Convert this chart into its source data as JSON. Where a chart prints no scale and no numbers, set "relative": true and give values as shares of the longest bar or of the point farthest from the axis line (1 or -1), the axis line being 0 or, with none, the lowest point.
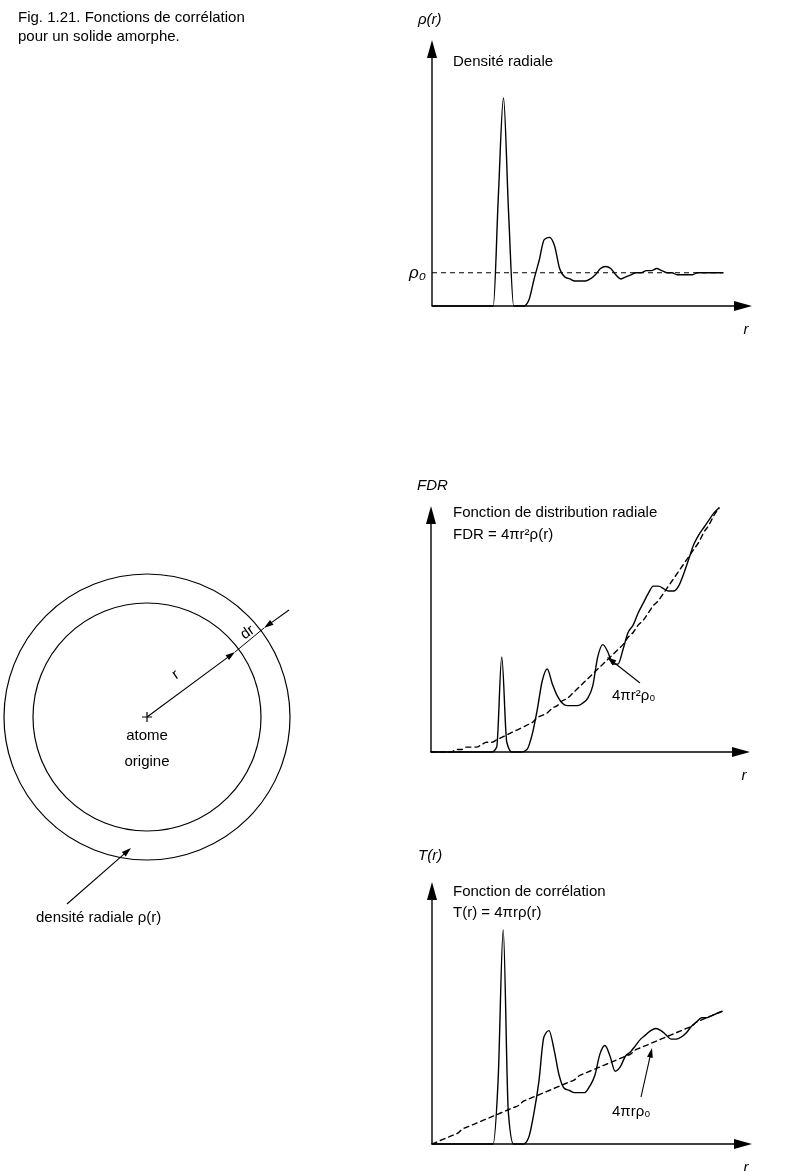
{
  "chart_data": [
    {
      "type": "other",
      "title": "Fig. 1.21. Fonctions de corrélation pour un solide amorphe.",
      "annotations": [
        "dr",
        "r",
        "atome origine",
        "densité radiale ρ(r)"
      ]
    },
    {
      "type": "line",
      "title": "Densité radiale",
      "ylabel": "ρ(r)",
      "xlabel": "r",
      "relative": true,
      "categories": [
        null,
        null,
        null,
        null,
        null,
        null,
        null,
        null,
        null,
        null,
        null,
        null,
        null,
        null,
        null,
        null,
        null,
        null,
        null,
        null,
        null,
        null,
        null,
        null,
        null,
        null,
        null,
        null,
        null,
        null,
        null,
        null,
        null,
        null,
        null,
        null,
        null,
        null,
        null,
        null,
        null,
        null,
        null,
        null,
        null,
        null,
        null,
        null,
        null,
        null,
        null,
        null,
        null,
        null,
        null,
        null,
        null,
        null
      ],
      "series": [
        {
          "color": "#000000",
          "line_style": "solid",
          "values": [
            0,
            0,
            0,
            0,
            0,
            0,
            0,
            0,
            0,
            0,
            0,
            0,
            0,
            0.53,
            1,
            0.45,
            0,
            0,
            0,
            0.03,
            0.13,
            0.22,
            0.32,
            0.33,
            0.29,
            0.18,
            0.14,
            0.13,
            0.12,
            0.12,
            0.12,
            0.13,
            0.15,
            0.18,
            0.19,
            0.18,
            0.15,
            0.13,
            0.14,
            0.15,
            0.16,
            0.16,
            0.17,
            0.17,
            0.18,
            0.17,
            0.16,
            0.16,
            0.15,
            0.15,
            0.15,
            0.15,
            0.16,
            0.16,
            0.16,
            0.16,
            0.16,
            0.16
          ]
        }
      ],
      "ref_lines": [
        {
          "axis": "y",
          "value": 0.16,
          "label": "ρ₀",
          "line_style": "dashed",
          "color": "#000000"
        }
      ]
    },
    {
      "type": "line",
      "title": "Fonction de distribution radiale",
      "subtitle": "FDR = 4πr²ρ(r)",
      "ylabel": "FDR",
      "xlabel": "r",
      "relative": true,
      "categories": [
        null,
        null,
        null,
        null,
        null,
        null,
        null,
        null,
        null,
        null,
        null,
        null,
        null,
        null,
        null,
        null,
        null,
        null,
        null,
        null,
        null,
        null,
        null,
        null,
        null,
        null,
        null,
        null,
        null,
        null,
        null,
        null,
        null,
        null,
        null,
        null,
        null,
        null,
        null,
        null,
        null,
        null,
        null,
        null,
        null,
        null,
        null,
        null,
        null,
        null,
        null,
        null,
        null,
        null,
        null,
        null,
        null,
        null
      ],
      "series": [
        {
          "color": "#000000",
          "line_style": "solid",
          "values": [
            0,
            0,
            0,
            0,
            0,
            0,
            0,
            0,
            0,
            0,
            0,
            0,
            0,
            0.02,
            0.39,
            0.04,
            0,
            0,
            0,
            0.01,
            0.07,
            0.17,
            0.29,
            0.34,
            0.28,
            0.23,
            0.2,
            0.19,
            0.19,
            0.19,
            0.2,
            0.22,
            0.27,
            0.39,
            0.44,
            0.41,
            0.36,
            0.36,
            0.42,
            0.49,
            0.52,
            0.57,
            0.61,
            0.65,
            0.68,
            0.68,
            0.67,
            0.66,
            0.66,
            0.68,
            0.73,
            0.79,
            0.85,
            0.89,
            0.92,
            0.95,
            0.98,
            1
          ]
        },
        {
          "color": "#000000",
          "line_style": "dashed",
          "values": [
            0,
            0,
            0,
            0,
            0,
            0.01,
            0.01,
            0.02,
            0.02,
            0.02,
            0.03,
            0.04,
            0.04,
            0.05,
            0.06,
            0.07,
            0.08,
            0.09,
            0.1,
            0.11,
            0.12,
            0.14,
            0.15,
            0.16,
            0.18,
            0.19,
            0.21,
            0.22,
            0.24,
            0.26,
            0.28,
            0.3,
            0.32,
            0.34,
            0.36,
            0.38,
            0.4,
            0.42,
            0.44,
            0.47,
            0.49,
            0.52,
            0.54,
            0.57,
            0.6,
            0.62,
            0.65,
            0.68,
            0.71,
            0.74,
            0.77,
            0.8,
            0.83,
            0.86,
            0.9,
            0.93,
            0.97,
            1
          ]
        }
      ],
      "annotations": [
        "4πr²ρ₀"
      ]
    },
    {
      "type": "line",
      "title": "Fonction de corrélation",
      "subtitle": "T(r) = 4πrρ(r)",
      "ylabel": "T(r)",
      "xlabel": "r",
      "relative": true,
      "categories": [
        null,
        null,
        null,
        null,
        null,
        null,
        null,
        null,
        null,
        null,
        null,
        null,
        null,
        null,
        null,
        null,
        null,
        null,
        null,
        null,
        null,
        null,
        null,
        null,
        null,
        null,
        null,
        null,
        null,
        null,
        null,
        null,
        null,
        null,
        null,
        null,
        null,
        null,
        null,
        null,
        null,
        null,
        null,
        null,
        null,
        null,
        null,
        null,
        null,
        null,
        null,
        null,
        null,
        null,
        null,
        null,
        null,
        null
      ],
      "series": [
        {
          "color": "#000000",
          "line_style": "solid",
          "values": [
            0,
            0,
            0,
            0,
            0,
            0,
            0,
            0,
            0,
            0,
            0,
            0,
            0,
            0.3,
            1,
            0.15,
            0,
            0,
            0,
            0.03,
            0.14,
            0.29,
            0.5,
            0.53,
            0.44,
            0.32,
            0.26,
            0.25,
            0.24,
            0.24,
            0.24,
            0.27,
            0.32,
            0.42,
            0.46,
            0.41,
            0.34,
            0.36,
            0.41,
            0.43,
            0.46,
            0.49,
            0.51,
            0.53,
            0.54,
            0.53,
            0.51,
            0.49,
            0.49,
            0.5,
            0.52,
            0.55,
            0.57,
            0.59,
            0.59,
            0.6,
            0.61,
            0.62
          ]
        },
        {
          "color": "#000000",
          "line_style": "dashed",
          "values": [
            0,
            0.01,
            0.02,
            0.03,
            0.04,
            0.05,
            0.07,
            0.08,
            0.09,
            0.1,
            0.11,
            0.12,
            0.13,
            0.14,
            0.15,
            0.16,
            0.17,
            0.18,
            0.2,
            0.21,
            0.22,
            0.23,
            0.24,
            0.25,
            0.26,
            0.27,
            0.28,
            0.29,
            0.3,
            0.32,
            0.33,
            0.34,
            0.35,
            0.36,
            0.37,
            0.38,
            0.39,
            0.4,
            0.41,
            0.42,
            0.44,
            0.45,
            0.46,
            0.47,
            0.48,
            0.49,
            0.5,
            0.51,
            0.52,
            0.53,
            0.54,
            0.55,
            0.57,
            0.58,
            0.59,
            0.6,
            0.61,
            0.62
          ]
        }
      ],
      "annotations": [
        "4πrρ₀"
      ]
    }
  ]
}
